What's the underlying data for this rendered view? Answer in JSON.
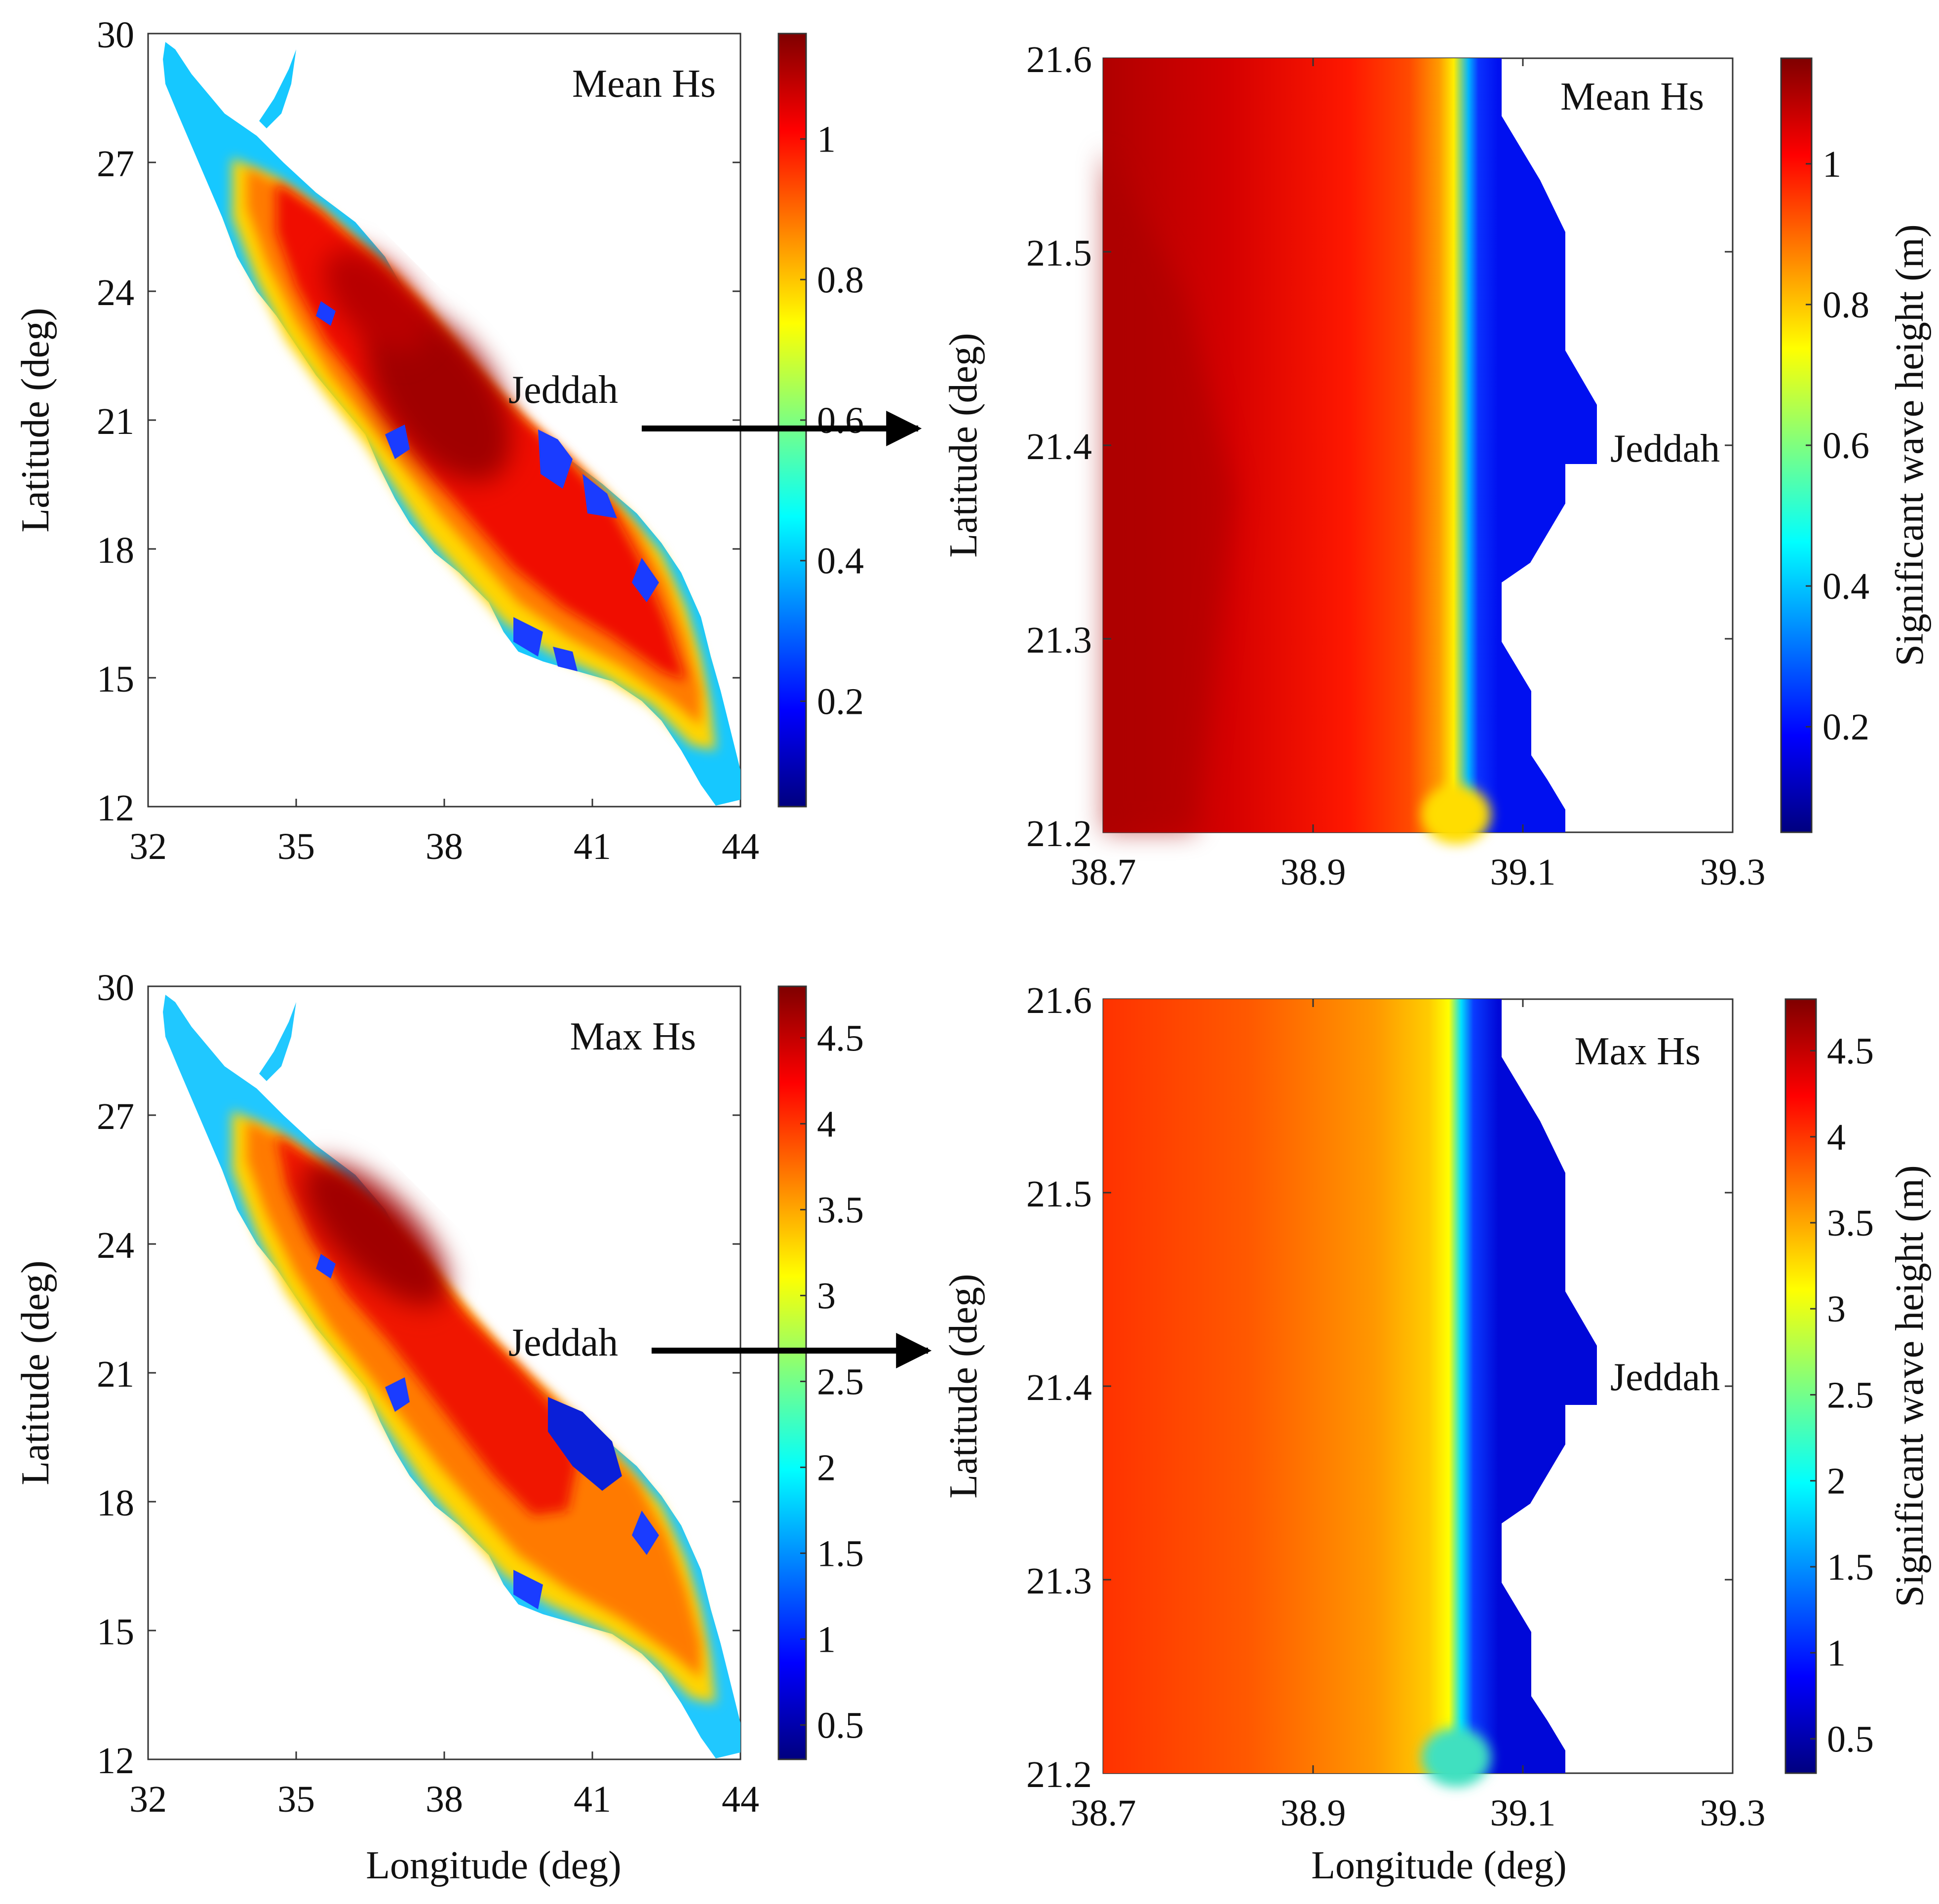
{
  "figure": {
    "arrow_label": "Jeddah"
  },
  "colormap": {
    "name": "jet",
    "stops": [
      "#00007f",
      "#0000ff",
      "#007fff",
      "#00ffff",
      "#7fff7f",
      "#ffff00",
      "#ff7f00",
      "#ff0000",
      "#7f0000"
    ]
  },
  "chart_data": [
    {
      "type": "heatmap",
      "id": "red-sea-mean",
      "title": "Mean Hs",
      "xlabel": "",
      "ylabel": "Latitude (deg)",
      "xlim": [
        32,
        44
      ],
      "ylim": [
        12,
        30
      ],
      "xticks": [
        "32",
        "35",
        "38",
        "41",
        "44"
      ],
      "yticks": [
        "12",
        "15",
        "18",
        "21",
        "24",
        "27",
        "30"
      ],
      "colorbar": {
        "label": "",
        "min": 0.05,
        "max": 1.15,
        "ticks": [
          "0.2",
          "0.4",
          "0.6",
          "0.8",
          "1"
        ]
      },
      "annotation": "Jeddah",
      "core_hs_max": 1.1,
      "coastal_hs_min": 0.1
    },
    {
      "type": "heatmap",
      "id": "jeddah-mean",
      "title": "Mean Hs",
      "xlabel": "",
      "ylabel": "Latitude (deg)",
      "xlim": [
        38.7,
        39.3
      ],
      "ylim": [
        21.2,
        21.6
      ],
      "xticks": [
        "38.7",
        "38.9",
        "39.1",
        "39.3"
      ],
      "yticks": [
        "21.2",
        "21.3",
        "21.4",
        "21.5",
        "21.6"
      ],
      "colorbar": {
        "label": "Significant wave height (m)",
        "min": 0.05,
        "max": 1.15,
        "ticks": [
          "0.2",
          "0.4",
          "0.6",
          "0.8",
          "1"
        ]
      },
      "annotation": "Jeddah",
      "offshore_hs": 1.05,
      "nearshore_hs": 0.75,
      "coast_hs": 0.1
    },
    {
      "type": "heatmap",
      "id": "red-sea-max",
      "title": "Max Hs",
      "xlabel": "Longitude (deg)",
      "ylabel": "Latitude (deg)",
      "xlim": [
        32,
        44
      ],
      "ylim": [
        12,
        30
      ],
      "xticks": [
        "32",
        "35",
        "38",
        "41",
        "44"
      ],
      "yticks": [
        "12",
        "15",
        "18",
        "21",
        "24",
        "27",
        "30"
      ],
      "colorbar": {
        "label": "",
        "min": 0.3,
        "max": 4.8,
        "ticks": [
          "0.5",
          "1",
          "1.5",
          "2",
          "2.5",
          "3",
          "3.5",
          "4",
          "4.5"
        ]
      },
      "annotation": "Jeddah",
      "core_hs_max": 4.7,
      "coastal_hs_min": 0.5
    },
    {
      "type": "heatmap",
      "id": "jeddah-max",
      "title": "Max Hs",
      "xlabel": "Longitude (deg)",
      "ylabel": "Latitude (deg)",
      "xlim": [
        38.7,
        39.3
      ],
      "ylim": [
        21.2,
        21.6
      ],
      "xticks": [
        "38.7",
        "38.9",
        "39.1",
        "39.3"
      ],
      "yticks": [
        "21.2",
        "21.3",
        "21.4",
        "21.5",
        "21.6"
      ],
      "colorbar": {
        "label": "Significant wave height (m)",
        "min": 0.3,
        "max": 4.8,
        "ticks": [
          "0.5",
          "1",
          "1.5",
          "2",
          "2.5",
          "3",
          "3.5",
          "4",
          "4.5"
        ]
      },
      "annotation": "Jeddah",
      "offshore_hs": 4.2,
      "nearshore_hs": 3.0,
      "coast_hs": 0.6
    }
  ]
}
